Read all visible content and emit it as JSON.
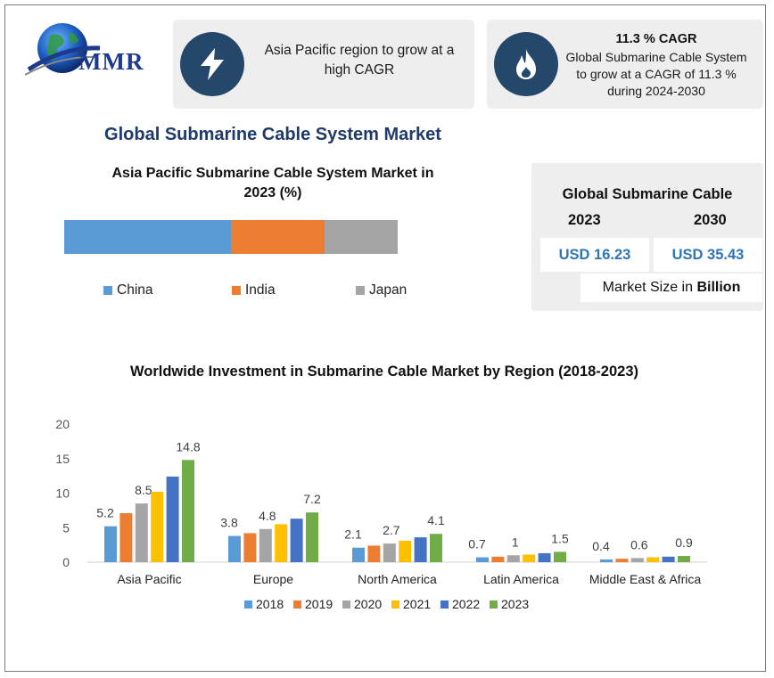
{
  "logo": {
    "text": "MMR"
  },
  "card1": {
    "icon": "lightning-bolt-icon",
    "text": "Asia Pacific region to grow at a high CAGR"
  },
  "card2": {
    "icon": "flame-icon",
    "heading": "11.3 % CAGR",
    "text": "Global Submarine Cable System to grow at a CAGR of 11.3 % during 2024-2030"
  },
  "main_title": "Global Submarine Cable System Market",
  "market_size": {
    "title": "Global Submarine Cable",
    "year1": "2023",
    "year2": "2030",
    "value1": "USD 16.23",
    "value2": "USD 35.43",
    "unit_prefix": "Market Size in ",
    "unit_bold": "Billion"
  },
  "colors": {
    "dark_blue": "#24476b",
    "title_blue": "#1f3a6b",
    "value_blue": "#2e75b6",
    "card_gray": "#eeeeee"
  },
  "chart_data": [
    {
      "type": "bar",
      "subtype": "stacked-horizontal",
      "title": "Asia Pacific Submarine Cable System Market in 2023 (%)",
      "categories": [
        "China",
        "India",
        "Japan"
      ],
      "values": [
        50,
        28,
        22
      ],
      "colors": [
        "#5b9bd5",
        "#ed7d31",
        "#a5a5a5"
      ],
      "legend": "bottom"
    },
    {
      "type": "bar",
      "title": "Worldwide Investment in Submarine Cable Market by Region (2018-2023)",
      "categories": [
        "Asia Pacific",
        "Europe",
        "North America",
        "Latin America",
        "Middle East & Africa"
      ],
      "series": [
        {
          "name": "2018",
          "color": "#5b9bd5",
          "values": [
            5.2,
            3.8,
            2.1,
            0.7,
            0.4
          ],
          "labels": [
            "5.2",
            "3.8",
            "2.1",
            "0.7",
            "0.4"
          ]
        },
        {
          "name": "2019",
          "color": "#ed7d31",
          "values": [
            7.1,
            4.2,
            2.4,
            0.8,
            0.5
          ],
          "labels": [
            "",
            "",
            "",
            "",
            ""
          ]
        },
        {
          "name": "2020",
          "color": "#a5a5a5",
          "values": [
            8.5,
            4.8,
            2.7,
            1.0,
            0.6
          ],
          "labels": [
            "8.5",
            "4.8",
            "2.7",
            "1",
            "0.6"
          ]
        },
        {
          "name": "2021",
          "color": "#ffc000",
          "values": [
            10.2,
            5.5,
            3.1,
            1.1,
            0.7
          ],
          "labels": [
            "",
            "",
            "",
            "",
            ""
          ]
        },
        {
          "name": "2022",
          "color": "#4472c4",
          "values": [
            12.4,
            6.3,
            3.6,
            1.3,
            0.8
          ],
          "labels": [
            "",
            "",
            "",
            "",
            ""
          ]
        },
        {
          "name": "2023",
          "color": "#70ad47",
          "values": [
            14.8,
            7.2,
            4.1,
            1.5,
            0.9
          ],
          "labels": [
            "14.8",
            "7.2",
            "4.1",
            "1.5",
            "0.9"
          ]
        }
      ],
      "yticks": [
        "0",
        "5",
        "10",
        "15",
        "20"
      ],
      "ylim": [
        0,
        20
      ],
      "grid": false,
      "legend": "bottom"
    }
  ]
}
